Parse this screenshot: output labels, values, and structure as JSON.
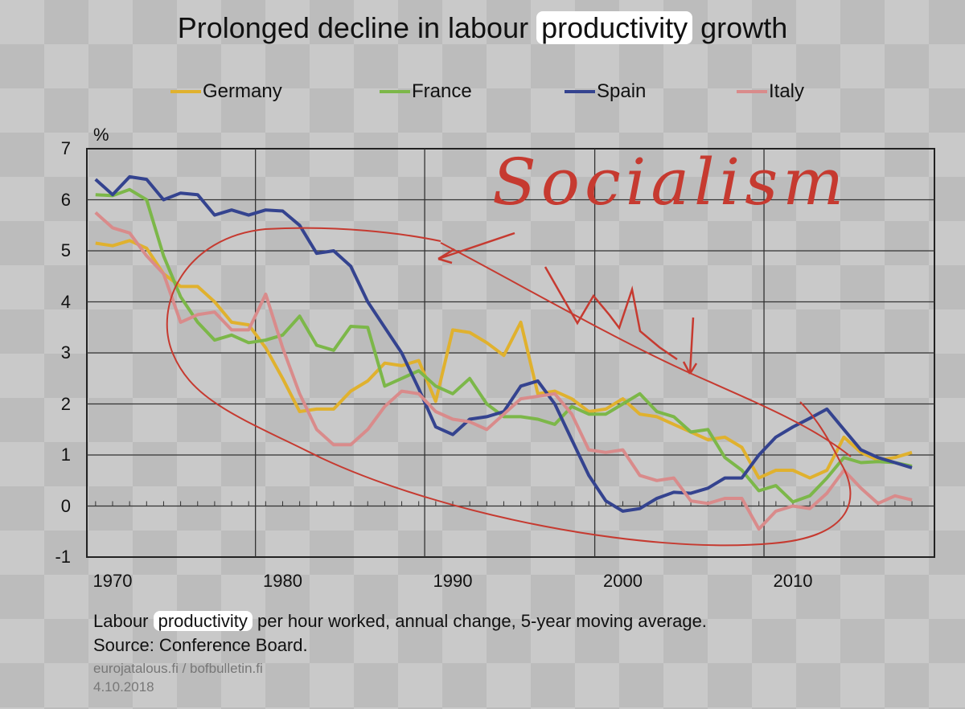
{
  "title_parts": {
    "before": "Prolonged decline in labour ",
    "highlight": "productivity",
    "after": " growth"
  },
  "annotation": {
    "text": "Socialism",
    "color": "#c63a30"
  },
  "footer": {
    "line1_before": "Labour ",
    "line1_highlight": "productivity",
    "line1_after": " per hour worked, annual change, 5-year moving average.",
    "line2": "Source: Conference Board.",
    "line3": "eurojatalous.fi  / bofbulletin.fi",
    "line4": "4.10.2018"
  },
  "chart_data": {
    "type": "line",
    "title": "Prolonged decline in labour productivity growth",
    "ylabel": "%",
    "xlabel": "",
    "ylim": [
      -1,
      7
    ],
    "yticks": [
      "7",
      "6",
      "5",
      "4",
      "3",
      "2",
      "1",
      "0",
      "-1"
    ],
    "xticks": [
      "1970",
      "1980",
      "1990",
      "2000",
      "2010"
    ],
    "grid": true,
    "legend_position": "top",
    "x": [
      1969,
      1970,
      1971,
      1972,
      1973,
      1974,
      1975,
      1976,
      1977,
      1978,
      1979,
      1980,
      1981,
      1982,
      1983,
      1984,
      1985,
      1986,
      1987,
      1988,
      1989,
      1990,
      1991,
      1992,
      1993,
      1994,
      1995,
      1996,
      1997,
      1998,
      1999,
      2000,
      2001,
      2002,
      2003,
      2004,
      2005,
      2006,
      2007,
      2008,
      2009,
      2010,
      2011,
      2012,
      2013,
      2014,
      2015,
      2016,
      2017
    ],
    "series": [
      {
        "name": "Germany",
        "color": "#e0b12e",
        "values": [
          5.15,
          5.1,
          5.2,
          5.05,
          4.55,
          4.3,
          4.3,
          4.0,
          3.6,
          3.55,
          3.1,
          2.5,
          1.85,
          1.9,
          1.9,
          2.25,
          2.45,
          2.8,
          2.75,
          2.85,
          2.05,
          3.45,
          3.4,
          3.2,
          2.95,
          3.6,
          2.2,
          2.25,
          2.1,
          1.85,
          1.9,
          2.1,
          1.8,
          1.75,
          1.6,
          1.45,
          1.3,
          1.35,
          1.15,
          0.55,
          0.7,
          0.7,
          0.55,
          0.7,
          1.35,
          1.05,
          0.9,
          0.95,
          1.05
        ]
      },
      {
        "name": "France",
        "color": "#7cb749",
        "values": [
          6.1,
          6.08,
          6.2,
          6.0,
          4.9,
          4.1,
          3.6,
          3.25,
          3.35,
          3.2,
          3.25,
          3.35,
          3.72,
          3.15,
          3.05,
          3.52,
          3.5,
          2.35,
          2.5,
          2.65,
          2.35,
          2.2,
          2.5,
          2.0,
          1.75,
          1.75,
          1.7,
          1.6,
          1.95,
          1.8,
          1.8,
          2.0,
          2.2,
          1.85,
          1.75,
          1.45,
          1.5,
          0.95,
          0.7,
          0.3,
          0.4,
          0.08,
          0.2,
          0.55,
          0.95,
          0.85,
          0.87,
          0.85,
          0.78
        ]
      },
      {
        "name": "Spain",
        "color": "#34438f",
        "values": [
          6.4,
          6.1,
          6.45,
          6.4,
          6.0,
          6.13,
          6.1,
          5.7,
          5.8,
          5.7,
          5.8,
          5.78,
          5.5,
          4.95,
          5.0,
          4.7,
          4.0,
          3.5,
          3.0,
          2.3,
          1.55,
          1.4,
          1.7,
          1.75,
          1.85,
          2.35,
          2.45,
          2.0,
          1.3,
          0.6,
          0.1,
          -0.1,
          -0.05,
          0.15,
          0.27,
          0.25,
          0.35,
          0.55,
          0.55,
          1.0,
          1.35,
          1.55,
          1.72,
          1.9,
          1.5,
          1.1,
          0.95,
          0.85,
          0.75
        ]
      },
      {
        "name": "Italy",
        "color": "#d98b8b",
        "values": [
          5.75,
          5.45,
          5.35,
          4.9,
          4.55,
          3.6,
          3.75,
          3.8,
          3.45,
          3.45,
          4.15,
          3.1,
          2.2,
          1.5,
          1.2,
          1.2,
          1.5,
          1.95,
          2.25,
          2.2,
          1.85,
          1.7,
          1.65,
          1.5,
          1.8,
          2.1,
          2.15,
          2.2,
          1.8,
          1.1,
          1.05,
          1.1,
          0.6,
          0.5,
          0.55,
          0.1,
          0.05,
          0.15,
          0.15,
          -0.45,
          -0.1,
          0.0,
          -0.05,
          0.25,
          0.7,
          0.35,
          0.05,
          0.2,
          0.12
        ]
      }
    ]
  }
}
